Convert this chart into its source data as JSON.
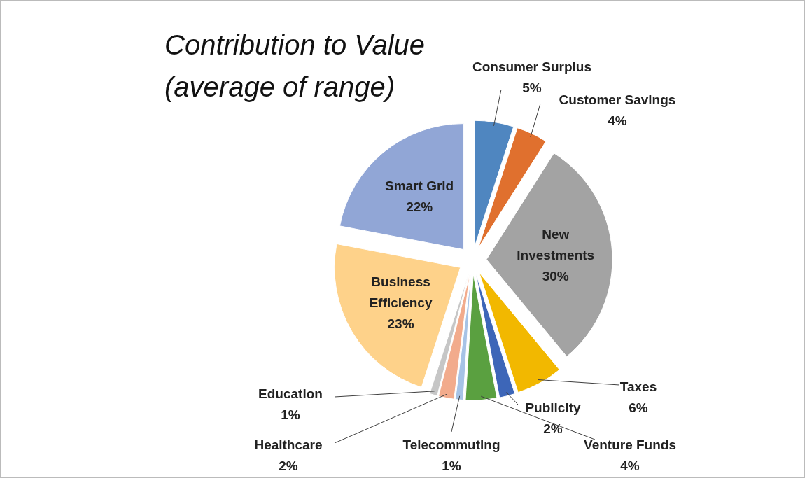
{
  "chart_data": {
    "type": "pie",
    "title": "Contribution to Value",
    "subtitle": "(average of range)",
    "categories": [
      "Consumer Surplus",
      "Customer Savings",
      "New Investments",
      "Taxes",
      "Publicity",
      "Venture Funds",
      "Telecommuting",
      "Healthcare",
      "Education",
      "Business Efficiency",
      "Smart Grid"
    ],
    "values": [
      5,
      4,
      30,
      6,
      2,
      4,
      1,
      2,
      1,
      23,
      22
    ],
    "colors": [
      "#4f86c0",
      "#e0702e",
      "#a3a3a3",
      "#f2b800",
      "#3d66b8",
      "#5aa040",
      "#a6c3e6",
      "#f2ab8c",
      "#c6c6c6",
      "#fed28a",
      "#91a6d6"
    ],
    "value_labels": [
      "5%",
      "4%",
      "30%",
      "6%",
      "2%",
      "4%",
      "1%",
      "2%",
      "1%",
      "23%",
      "22%"
    ]
  }
}
